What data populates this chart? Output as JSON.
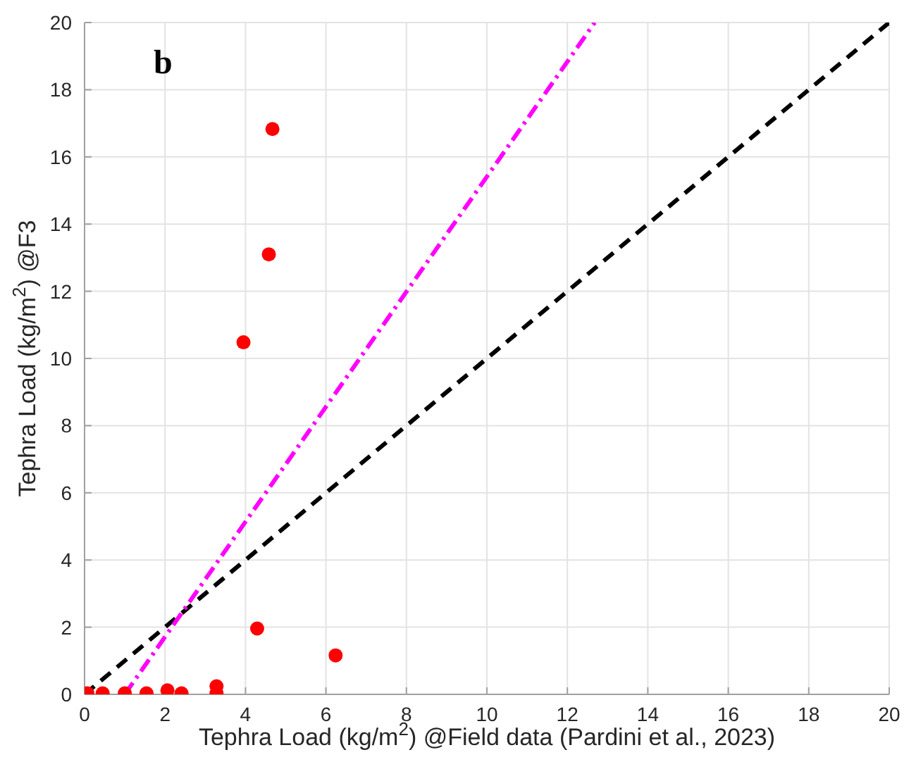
{
  "chart_data": {
    "type": "scatter",
    "xlabel": "Tephra Load (kg/m$^{2}$) @Field data (Pardini et al., 2023)",
    "ylabel": "Tephra Load (kg/m$^{2}$) @F3",
    "xlim": [
      0,
      20
    ],
    "ylim": [
      0,
      20
    ],
    "xticks": [
      0,
      2,
      4,
      6,
      8,
      10,
      12,
      14,
      16,
      18,
      20
    ],
    "yticks": [
      0,
      2,
      4,
      6,
      8,
      10,
      12,
      14,
      16,
      18,
      20
    ],
    "grid": true,
    "annotations": [
      "b"
    ],
    "series": [
      {
        "type": "line",
        "color": "#000000",
        "line_style": "dashed",
        "marker": "none",
        "x": [
          0,
          20
        ],
        "values": [
          0,
          20
        ]
      },
      {
        "type": "line",
        "color": "#ff00ff",
        "line_style": "dashdot",
        "marker": "none",
        "x": [
          1.0,
          12.68
        ],
        "values": [
          0,
          20
        ]
      },
      {
        "color": "#ff0000",
        "marker": "circle",
        "x": [
          0.07,
          0.45,
          1.0,
          1.54,
          2.06,
          2.41,
          3.28,
          3.28,
          4.29,
          6.24,
          3.95,
          4.58,
          4.67
        ],
        "values": [
          0.03,
          0.03,
          0.03,
          0.03,
          0.12,
          0.03,
          0.24,
          0.03,
          1.96,
          1.16,
          10.48,
          13.1,
          16.83
        ]
      }
    ]
  }
}
